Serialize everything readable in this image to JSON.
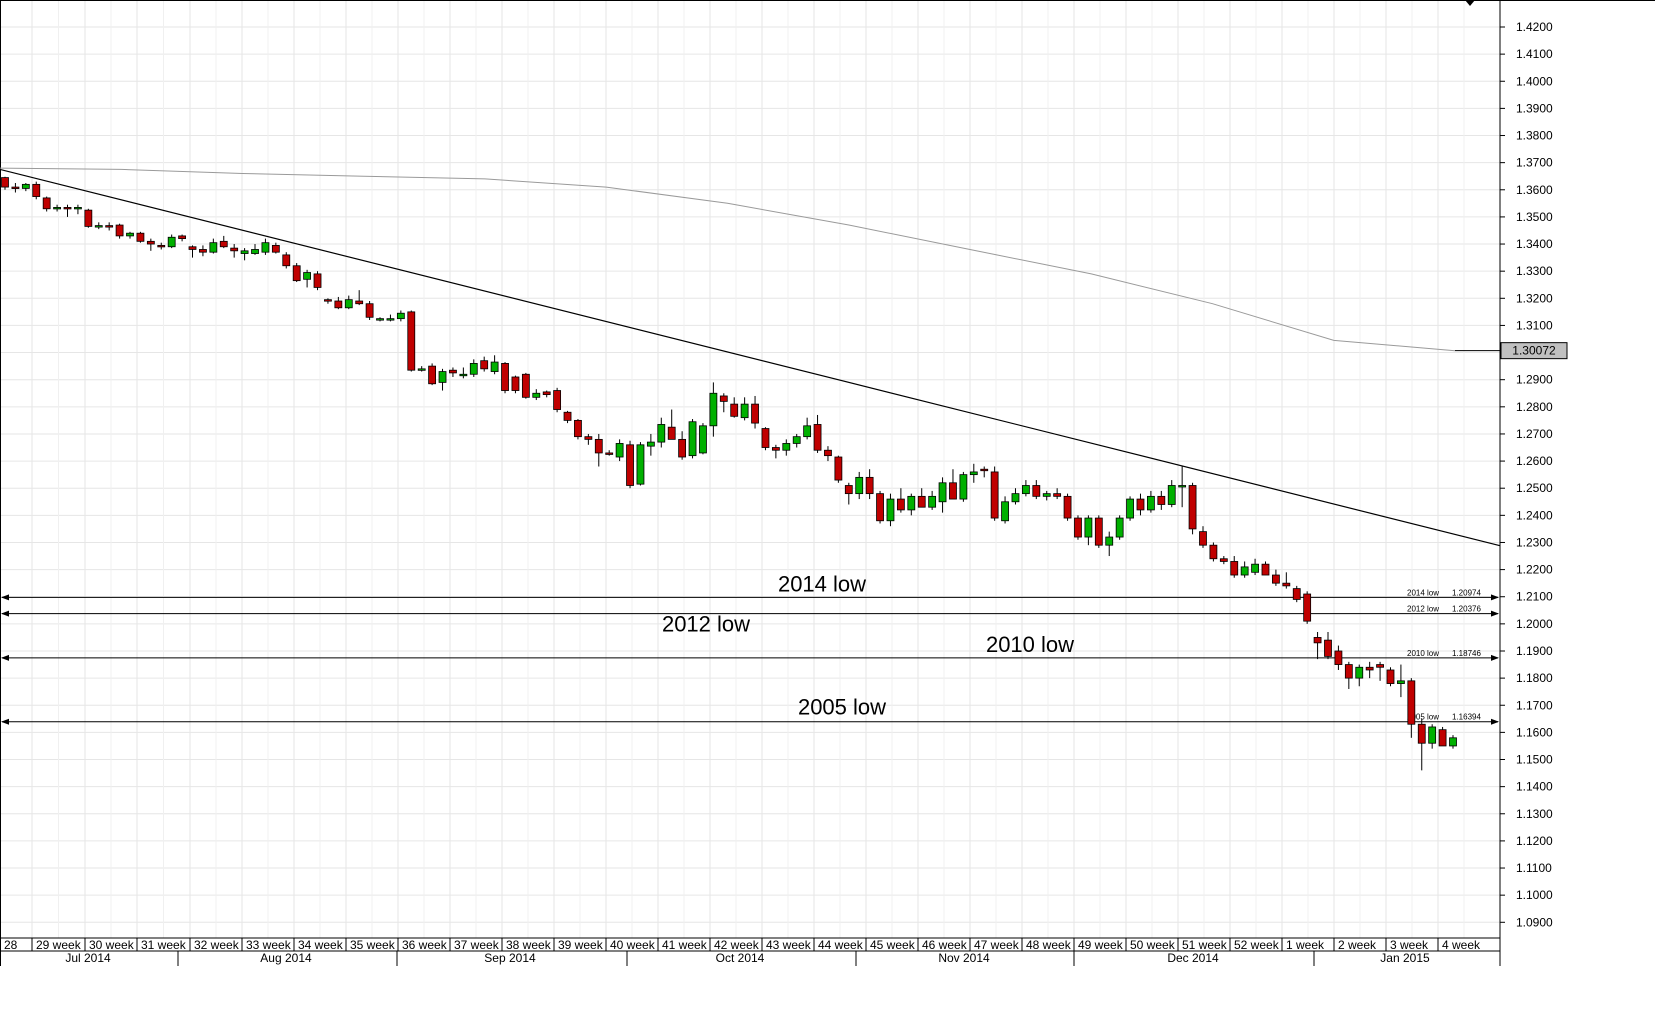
{
  "chart_data": {
    "type": "candlestick",
    "title": "",
    "ylim": [
      1.08,
      1.43
    ],
    "y_ticks": [
      "1.4200",
      "1.4100",
      "1.4000",
      "1.3900",
      "1.3800",
      "1.3700",
      "1.3600",
      "1.3500",
      "1.3400",
      "1.3300",
      "1.3200",
      "1.3100",
      "1.3000",
      "1.2900",
      "1.2800",
      "1.2700",
      "1.2600",
      "1.2500",
      "1.2400",
      "1.2300",
      "1.2200",
      "1.2100",
      "1.2000",
      "1.1900",
      "1.1800",
      "1.1700",
      "1.1600",
      "1.1500",
      "1.1400",
      "1.1300",
      "1.1200",
      "1.1100",
      "1.1000",
      "1.0900"
    ],
    "week_labels": [
      "28",
      "29 week",
      "30 week",
      "31 week",
      "32 week",
      "33 week",
      "34 week",
      "35 week",
      "36 week",
      "37 week",
      "38 week",
      "39 week",
      "40 week",
      "41 week",
      "42 week",
      "43 week",
      "44 week",
      "45 week",
      "46 week",
      "47 week",
      "48 week",
      "49 week",
      "50 week",
      "51 week",
      "52 week",
      "1 week",
      "2 week",
      "3 week",
      "4 week"
    ],
    "month_labels": [
      "Jul 2014",
      "Aug 2014",
      "Sep 2014",
      "Oct 2014",
      "Nov 2014",
      "Dec 2014",
      "Jan 2015"
    ],
    "grid": true,
    "moving_average": {
      "current_value_label": "1.30072",
      "values": [
        1.368,
        1.3675,
        1.366,
        1.365,
        1.364,
        1.361,
        1.355,
        1.347,
        1.338,
        1.329,
        1.318,
        1.3045,
        1.3007
      ]
    },
    "trendline": {
      "start": 1.3675,
      "end": 1.2288
    },
    "support_levels": [
      {
        "name": "2014 low",
        "value": 1.20974,
        "value_label": "1.20974",
        "big_label": "2014 low",
        "small_label": "2014 low"
      },
      {
        "name": "2012 low",
        "value": 1.20376,
        "value_label": "1.20376",
        "big_label": "2012 low",
        "small_label": "2012 low"
      },
      {
        "name": "2010 low",
        "value": 1.18746,
        "value_label": "1.18746",
        "big_label": "2010 low",
        "small_label": "2010 low"
      },
      {
        "name": "2005 low",
        "value": 1.16394,
        "value_label": "1.16394",
        "big_label": "2005 low",
        "small_label": "2005 low"
      }
    ],
    "candles": [
      [
        1.3645,
        1.3648,
        1.36,
        1.361
      ],
      [
        1.361,
        1.3625,
        1.359,
        1.3605
      ],
      [
        1.3605,
        1.3625,
        1.3595,
        1.362
      ],
      [
        1.362,
        1.363,
        1.3565,
        1.3575
      ],
      [
        1.357,
        1.3575,
        1.352,
        1.353
      ],
      [
        1.353,
        1.3545,
        1.352,
        1.3535
      ],
      [
        1.3535,
        1.3545,
        1.35,
        1.353
      ],
      [
        1.353,
        1.3545,
        1.351,
        1.3535
      ],
      [
        1.3525,
        1.353,
        1.346,
        1.3465
      ],
      [
        1.3465,
        1.348,
        1.3455,
        1.3468
      ],
      [
        1.3468,
        1.348,
        1.345,
        1.3465
      ],
      [
        1.347,
        1.3475,
        1.342,
        1.343
      ],
      [
        1.343,
        1.3445,
        1.342,
        1.344
      ],
      [
        1.344,
        1.3445,
        1.3405,
        1.341
      ],
      [
        1.341,
        1.342,
        1.3375,
        1.34
      ],
      [
        1.3395,
        1.3405,
        1.338,
        1.339
      ],
      [
        1.339,
        1.3435,
        1.3385,
        1.3425
      ],
      [
        1.343,
        1.3435,
        1.341,
        1.342
      ],
      [
        1.339,
        1.3395,
        1.335,
        1.338
      ],
      [
        1.338,
        1.3395,
        1.3355,
        1.337
      ],
      [
        1.337,
        1.342,
        1.3365,
        1.3405
      ],
      [
        1.341,
        1.343,
        1.3385,
        1.339
      ],
      [
        1.3385,
        1.34,
        1.335,
        1.3375
      ],
      [
        1.3365,
        1.3385,
        1.334,
        1.3375
      ],
      [
        1.3365,
        1.34,
        1.336,
        1.338
      ],
      [
        1.337,
        1.342,
        1.336,
        1.3405
      ],
      [
        1.3395,
        1.3405,
        1.3365,
        1.337
      ],
      [
        1.336,
        1.337,
        1.331,
        1.332
      ],
      [
        1.332,
        1.333,
        1.326,
        1.3265
      ],
      [
        1.327,
        1.3305,
        1.324,
        1.3295
      ],
      [
        1.329,
        1.33,
        1.323,
        1.324
      ],
      [
        1.3195,
        1.32,
        1.318,
        1.319
      ],
      [
        1.319,
        1.3205,
        1.316,
        1.3165
      ],
      [
        1.3165,
        1.321,
        1.316,
        1.3195
      ],
      [
        1.319,
        1.323,
        1.3175,
        1.318
      ],
      [
        1.318,
        1.319,
        1.312,
        1.313
      ],
      [
        1.3125,
        1.313,
        1.3115,
        1.3125
      ],
      [
        1.3125,
        1.314,
        1.3115,
        1.3125
      ],
      [
        1.3125,
        1.3155,
        1.3115,
        1.3145
      ],
      [
        1.315,
        1.3155,
        1.293,
        1.2935
      ],
      [
        1.2935,
        1.295,
        1.293,
        1.294
      ],
      [
        1.295,
        1.296,
        1.288,
        1.2885
      ],
      [
        1.289,
        1.294,
        1.286,
        1.293
      ],
      [
        1.2935,
        1.2945,
        1.291,
        1.2925
      ],
      [
        1.2915,
        1.2945,
        1.2905,
        1.292
      ],
      [
        1.292,
        1.2975,
        1.291,
        1.296
      ],
      [
        1.297,
        1.2985,
        1.293,
        1.294
      ],
      [
        1.293,
        1.299,
        1.292,
        1.2965
      ],
      [
        1.296,
        1.2965,
        1.285,
        1.286
      ],
      [
        1.291,
        1.2915,
        1.285,
        1.286
      ],
      [
        1.292,
        1.2925,
        1.283,
        1.2835
      ],
      [
        1.2835,
        1.2865,
        1.2825,
        1.285
      ],
      [
        1.2855,
        1.286,
        1.2835,
        1.2845
      ],
      [
        1.286,
        1.287,
        1.278,
        1.279
      ],
      [
        1.278,
        1.2785,
        1.274,
        1.275
      ],
      [
        1.275,
        1.2755,
        1.268,
        1.269
      ],
      [
        1.269,
        1.27,
        1.266,
        1.268
      ],
      [
        1.268,
        1.27,
        1.258,
        1.263
      ],
      [
        1.263,
        1.264,
        1.262,
        1.2625
      ],
      [
        1.2615,
        1.268,
        1.26,
        1.2665
      ],
      [
        1.266,
        1.2675,
        1.25,
        1.251
      ],
      [
        1.2515,
        1.267,
        1.251,
        1.266
      ],
      [
        1.2655,
        1.27,
        1.262,
        1.267
      ],
      [
        1.267,
        1.276,
        1.265,
        1.2735
      ],
      [
        1.2725,
        1.279,
        1.268,
        1.268
      ],
      [
        1.268,
        1.271,
        1.2605,
        1.2615
      ],
      [
        1.262,
        1.2755,
        1.261,
        1.2745
      ],
      [
        1.263,
        1.274,
        1.2625,
        1.273
      ],
      [
        1.273,
        1.289,
        1.269,
        1.285
      ],
      [
        1.284,
        1.285,
        1.278,
        1.282
      ],
      [
        1.281,
        1.2835,
        1.276,
        1.2765
      ],
      [
        1.276,
        1.2835,
        1.275,
        1.281
      ],
      [
        1.281,
        1.284,
        1.272,
        1.274
      ],
      [
        1.272,
        1.2725,
        1.264,
        1.265
      ],
      [
        1.265,
        1.266,
        1.261,
        1.264
      ],
      [
        1.264,
        1.268,
        1.262,
        1.2665
      ],
      [
        1.2665,
        1.27,
        1.265,
        1.269
      ],
      [
        1.269,
        1.276,
        1.268,
        1.273
      ],
      [
        1.2735,
        1.277,
        1.263,
        1.264
      ],
      [
        1.264,
        1.2655,
        1.26,
        1.262
      ],
      [
        1.2615,
        1.262,
        1.252,
        1.253
      ],
      [
        1.251,
        1.252,
        1.244,
        1.248
      ],
      [
        1.248,
        1.256,
        1.246,
        1.254
      ],
      [
        1.254,
        1.257,
        1.246,
        1.248
      ],
      [
        1.248,
        1.249,
        1.237,
        1.238
      ],
      [
        1.238,
        1.248,
        1.236,
        1.246
      ],
      [
        1.246,
        1.25,
        1.241,
        1.242
      ],
      [
        1.242,
        1.248,
        1.24,
        1.247
      ],
      [
        1.247,
        1.25,
        1.244,
        1.243
      ],
      [
        1.243,
        1.249,
        1.242,
        1.247
      ],
      [
        1.245,
        1.254,
        1.241,
        1.252
      ],
      [
        1.252,
        1.257,
        1.248,
        1.246
      ],
      [
        1.246,
        1.256,
        1.245,
        1.255
      ],
      [
        1.255,
        1.259,
        1.252,
        1.256
      ],
      [
        1.257,
        1.258,
        1.254,
        1.2565
      ],
      [
        1.256,
        1.258,
        1.238,
        1.239
      ],
      [
        1.238,
        1.247,
        1.237,
        1.245
      ],
      [
        1.245,
        1.25,
        1.244,
        1.248
      ],
      [
        1.248,
        1.253,
        1.247,
        1.251
      ],
      [
        1.251,
        1.253,
        1.246,
        1.247
      ],
      [
        1.247,
        1.249,
        1.2455,
        1.248
      ],
      [
        1.248,
        1.25,
        1.246,
        1.247
      ],
      [
        1.247,
        1.248,
        1.238,
        1.239
      ],
      [
        1.239,
        1.24,
        1.231,
        1.232
      ],
      [
        1.232,
        1.24,
        1.229,
        1.239
      ],
      [
        1.239,
        1.24,
        1.228,
        1.229
      ],
      [
        1.229,
        1.234,
        1.225,
        1.232
      ],
      [
        1.232,
        1.24,
        1.231,
        1.239
      ],
      [
        1.239,
        1.247,
        1.238,
        1.246
      ],
      [
        1.246,
        1.248,
        1.24,
        1.242
      ],
      [
        1.242,
        1.249,
        1.241,
        1.247
      ],
      [
        1.247,
        1.249,
        1.242,
        1.244
      ],
      [
        1.244,
        1.253,
        1.243,
        1.251
      ],
      [
        1.251,
        1.258,
        1.243,
        1.251
      ],
      [
        1.251,
        1.252,
        1.233,
        1.235
      ],
      [
        1.234,
        1.236,
        1.228,
        1.229
      ],
      [
        1.229,
        1.23,
        1.223,
        1.224
      ],
      [
        1.224,
        1.225,
        1.222,
        1.223
      ],
      [
        1.223,
        1.225,
        1.217,
        1.218
      ],
      [
        1.218,
        1.223,
        1.217,
        1.221
      ],
      [
        1.219,
        1.224,
        1.218,
        1.222
      ],
      [
        1.222,
        1.223,
        1.218,
        1.218
      ],
      [
        1.218,
        1.22,
        1.214,
        1.215
      ],
      [
        1.215,
        1.219,
        1.213,
        1.214
      ],
      [
        1.213,
        1.214,
        1.208,
        1.209
      ],
      [
        1.211,
        1.212,
        1.2,
        1.201
      ],
      [
        1.195,
        1.197,
        1.187,
        1.193
      ],
      [
        1.194,
        1.197,
        1.187,
        1.188
      ],
      [
        1.19,
        1.192,
        1.183,
        1.185
      ],
      [
        1.185,
        1.186,
        1.176,
        1.18
      ],
      [
        1.18,
        1.185,
        1.177,
        1.184
      ],
      [
        1.184,
        1.186,
        1.18,
        1.183
      ],
      [
        1.185,
        1.186,
        1.179,
        1.184
      ],
      [
        1.183,
        1.184,
        1.177,
        1.178
      ],
      [
        1.178,
        1.185,
        1.173,
        1.179
      ],
      [
        1.179,
        1.18,
        1.158,
        1.163
      ],
      [
        1.163,
        1.165,
        1.146,
        1.156
      ],
      [
        1.156,
        1.163,
        1.154,
        1.162
      ],
      [
        1.161,
        1.162,
        1.155,
        1.155
      ],
      [
        1.155,
        1.159,
        1.154,
        1.158
      ]
    ]
  }
}
